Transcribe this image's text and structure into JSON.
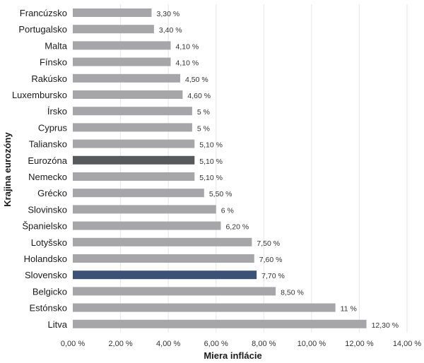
{
  "chart_data": {
    "type": "bar",
    "orientation": "horizontal",
    "categories": [
      "Francúzsko",
      "Portugalsko",
      "Malta",
      "Fínsko",
      "Rakúsko",
      "Luxembursko",
      "Írsko",
      "Cyprus",
      "Taliansko",
      "Eurozóna",
      "Nemecko",
      "Grécko",
      "Slovinsko",
      "Španielsko",
      "Lotyšsko",
      "Holandsko",
      "Slovensko",
      "Belgicko",
      "Estónsko",
      "Litva"
    ],
    "values": [
      3.3,
      3.4,
      4.1,
      4.1,
      4.5,
      4.6,
      5.0,
      5.0,
      5.1,
      5.1,
      5.1,
      5.5,
      6.0,
      6.2,
      7.5,
      7.6,
      7.7,
      8.5,
      11.0,
      12.3
    ],
    "value_labels": [
      "3,30 %",
      "3,40 %",
      "4,10 %",
      "4,10 %",
      "4,50 %",
      "4,60 %",
      "5 %",
      "5 %",
      "5,10 %",
      "5,10 %",
      "5,10 %",
      "5,50 %",
      "6 %",
      "6,20 %",
      "7,50 %",
      "7,60 %",
      "7,70 %",
      "8,50 %",
      "11 %",
      "12,30 %"
    ],
    "xlabel": "Miera inflácie",
    "ylabel": "Krajina eurozóny",
    "xlim": [
      0,
      14
    ],
    "x_ticks": [
      0,
      2,
      4,
      6,
      8,
      10,
      12,
      14
    ],
    "x_tick_labels": [
      "0,00 %",
      "2,00 %",
      "4,00 %",
      "6,00 %",
      "8,00 %",
      "10,00 %",
      "12,00 %",
      "14,00 %"
    ],
    "grid": "vertical",
    "legend": "none",
    "colors": {
      "default": "#a6a6a9",
      "highlights": {
        "Eurozóna": "#58595b",
        "Slovensko": "#3b5176"
      },
      "grid": "#e6e6e6"
    }
  }
}
